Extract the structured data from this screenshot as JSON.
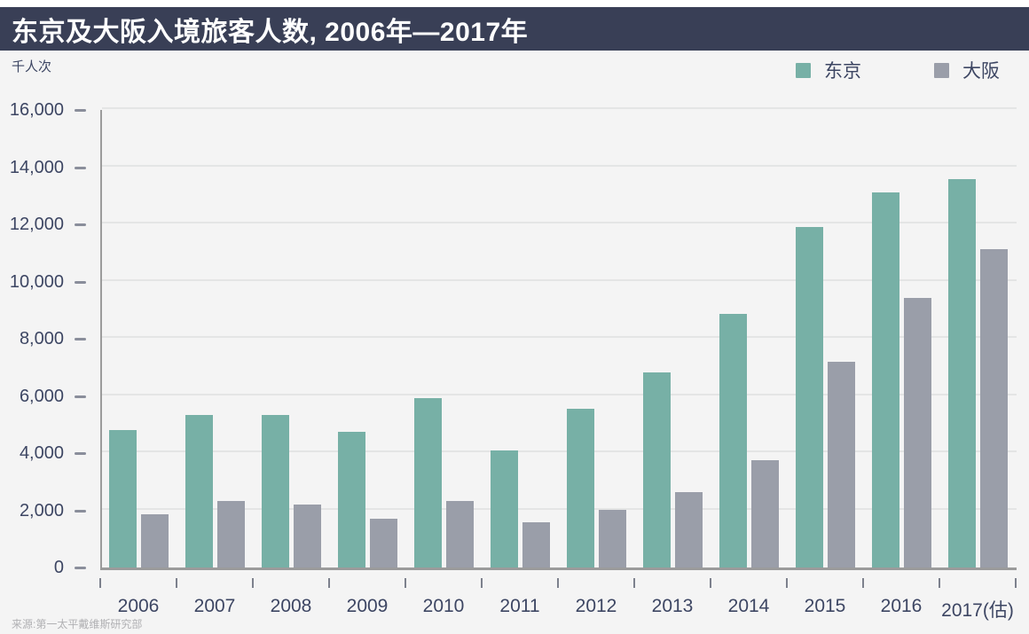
{
  "header": {
    "title": "东京及大阪入境旅客人数, 2006年—2017年"
  },
  "units_label": "千人次",
  "legend": {
    "items": [
      {
        "key": "tokyo",
        "label": "东京",
        "color": "#77b0a6"
      },
      {
        "key": "osaka",
        "label": "大阪",
        "color": "#9a9ea9"
      }
    ]
  },
  "source": "来源:第一太平戴维斯研究部",
  "colors": {
    "titlebar_bg": "#393f56",
    "title_text": "#ffffff",
    "page_bg": "#f4f4f4",
    "axis_text": "#3d4663",
    "axis_line": "#9b9b9b",
    "gridline": "#e4e5e5",
    "tokyo_bar": "#77b0a6",
    "osaka_bar": "#9a9ea9",
    "source_text": "#b0b0b3"
  },
  "chart_data": {
    "type": "bar",
    "title": "东京及大阪入境旅客人数, 2006年—2017年",
    "xlabel": "",
    "ylabel": "千人次",
    "categories": [
      "2006",
      "2007",
      "2008",
      "2009",
      "2010",
      "2011",
      "2012",
      "2013",
      "2014",
      "2015",
      "2016",
      "2017(估)"
    ],
    "series": [
      {
        "key": "tokyo",
        "name": "东京",
        "color": "#77b0a6",
        "values": [
          4800,
          5320,
          5330,
          4750,
          5930,
          4100,
          5560,
          6810,
          8880,
          11900,
          13110,
          13580
        ]
      },
      {
        "key": "osaka",
        "name": "大阪",
        "color": "#9a9ea9",
        "values": [
          1870,
          2330,
          2210,
          1700,
          2340,
          1580,
          2030,
          2630,
          3760,
          7180,
          9440,
          11120
        ]
      }
    ],
    "ylim": [
      0,
      16000
    ],
    "y_tick_step": 2000,
    "y_tick_labels": [
      "0",
      "2,000",
      "4,000",
      "6,000",
      "8,000",
      "10,000",
      "12,000",
      "14,000",
      "16,000"
    ],
    "grid": "horizontal",
    "legend_position": "top-right"
  }
}
